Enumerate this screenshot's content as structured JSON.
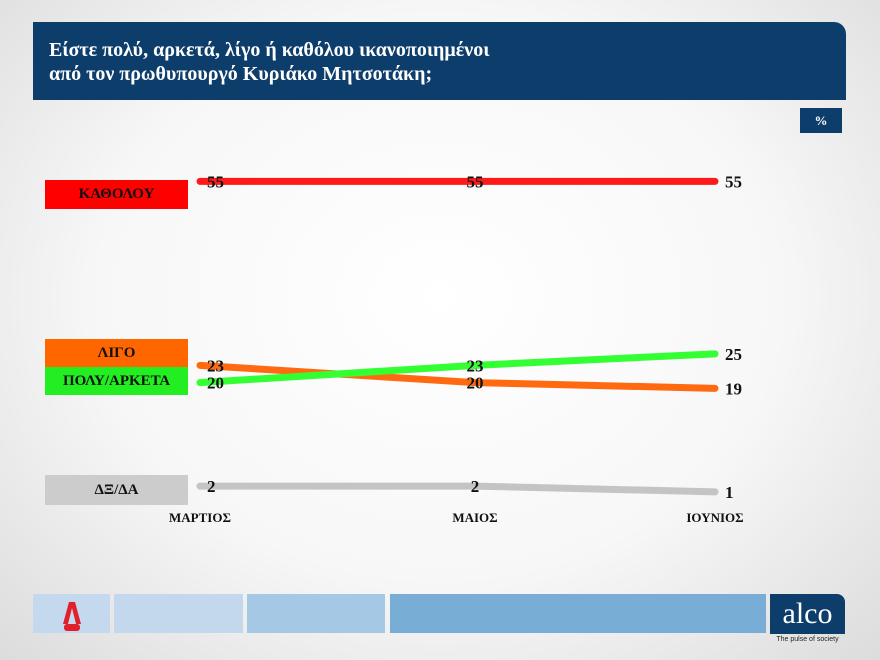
{
  "title": "Είστε πολύ, αρκετά, λίγο ή καθόλου ικανοποιημένοι\nαπό τον πρωθυπουργό Κυριάκο Μητσοτάκη;",
  "unit": "%",
  "chart_data": {
    "type": "line",
    "title": "Είστε πολύ, αρκετά, λίγο ή καθόλου ικανοποιημένοι από τον πρωθυπουργό Κυριάκο Μητσοτάκη;",
    "categories": [
      "ΜΑΡΤΙΟΣ",
      "ΜΑΙΟΣ",
      "ΙΟΥΝΙΟΣ"
    ],
    "ylabel": "%",
    "grid": false,
    "legend_placement": "left",
    "series": [
      {
        "name": "ΚΑΘΟΛΟΥ",
        "values": [
          55,
          55,
          55
        ],
        "color": "#ff1a1a",
        "legend_color": "#ff0000"
      },
      {
        "name": "ΛΙΓΟ",
        "values": [
          23,
          20,
          19
        ],
        "color": "#ff6a10",
        "legend_color": "#ff6600"
      },
      {
        "name": "ΠΟΛΥ/ΑΡΚΕΤΑ",
        "values": [
          20,
          23,
          25
        ],
        "color": "#33ff33",
        "legend_color": "#22ee22"
      },
      {
        "name": "ΔΞ/ΔΑ",
        "values": [
          2,
          2,
          1
        ],
        "color": "#c4c4c4",
        "legend_color": "#cccccc"
      }
    ]
  },
  "footer": {
    "left_logo": "ALPHA NEWS",
    "brand": "alco",
    "tagline": "The pulse of society"
  }
}
